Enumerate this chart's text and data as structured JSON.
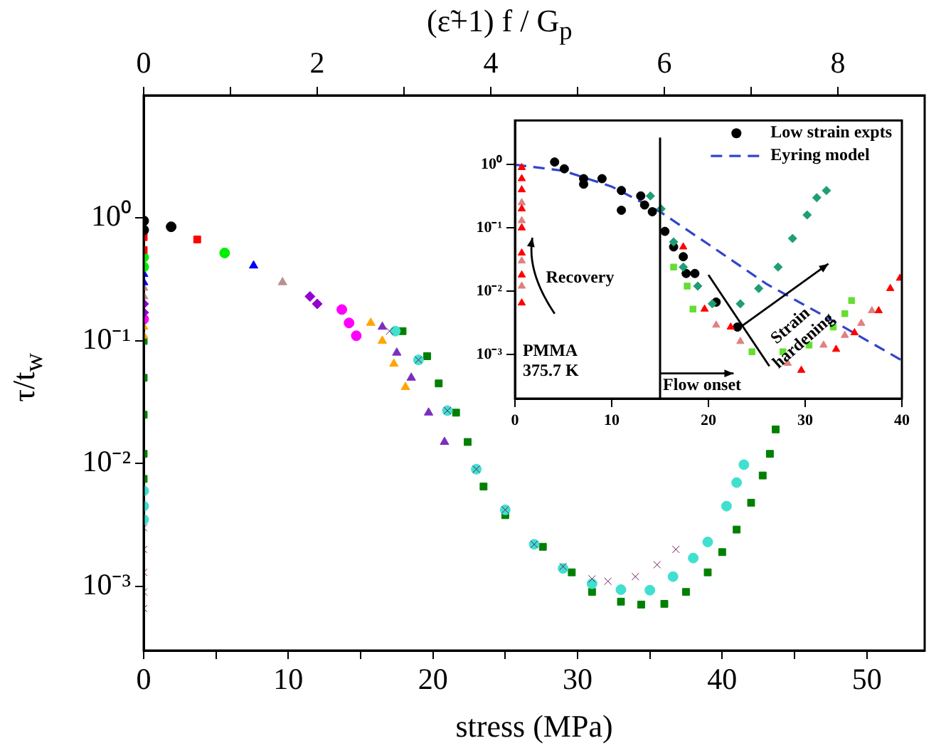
{
  "chart_data": [
    {
      "type": "scatter",
      "x2label": "(ε̃+1) f / G$_{p}$",
      "xlabel": "stress (MPa)",
      "ylabel": "τ/t$_{w}$",
      "log": "y",
      "grid": false,
      "xlim": [
        0,
        54
      ],
      "xticks": [
        0,
        {
          "value": 5,
          "label": null
        },
        10,
        {
          "value": 15,
          "label": null
        },
        20,
        {
          "value": 25,
          "label": null
        },
        30,
        {
          "value": 35,
          "label": null
        },
        40,
        {
          "value": 45,
          "label": null
        },
        50
      ],
      "x2lim": [
        0,
        9
      ],
      "x2ticks": [
        0,
        {
          "value": 1,
          "label": null
        },
        2,
        {
          "value": 3,
          "label": null
        },
        4,
        {
          "value": 5,
          "label": null
        },
        6,
        {
          "value": 7,
          "label": null
        },
        8
      ],
      "ylim": [
        0.0003,
        10
      ],
      "yticks": [
        {
          "value": 1,
          "label": "10⁰"
        },
        {
          "value": 0.1,
          "label": "10⁻¹"
        },
        {
          "value": 0.01,
          "label": "10⁻²"
        },
        {
          "value": 0.001,
          "label": "10⁻³"
        }
      ],
      "series": [
        {
          "color": "#000000",
          "marker": "circle",
          "x": [
            0,
            0,
            1.9
          ],
          "values": [
            0.95,
            0.8,
            0.85
          ]
        },
        {
          "color": "#ff0000",
          "marker": "square",
          "x": [
            0,
            0,
            3.7
          ],
          "values": [
            0.7,
            0.55,
            0.67
          ]
        },
        {
          "color": "#00ee00",
          "marker": "circle",
          "x": [
            0,
            0,
            5.6
          ],
          "values": [
            0.48,
            0.4,
            0.52
          ]
        },
        {
          "color": "#0000ff",
          "marker": "triangle",
          "x": [
            0,
            0,
            7.6
          ],
          "values": [
            0.35,
            0.3,
            0.41
          ]
        },
        {
          "color": "#bc8f8f",
          "marker": "triangle",
          "x": [
            0,
            0,
            9.6
          ],
          "values": [
            0.27,
            0.23,
            0.3
          ]
        },
        {
          "color": "#9400d3",
          "marker": "diamond",
          "x": [
            0,
            0,
            11.5,
            12
          ],
          "values": [
            0.2,
            0.17,
            0.23,
            0.2
          ]
        },
        {
          "color": "#ff00ff",
          "marker": "circle",
          "x": [
            0,
            13.7,
            14.2,
            14.7
          ],
          "values": [
            0.15,
            0.18,
            0.14,
            0.11
          ]
        },
        {
          "color": "#ffa500",
          "marker": "triangle",
          "x": [
            0,
            0,
            15.7,
            16.5,
            17.3,
            18.1
          ],
          "values": [
            0.13,
            0.11,
            0.14,
            0.1,
            0.065,
            0.042
          ]
        },
        {
          "color": "#7b2fbe",
          "marker": "triangle",
          "x": [
            16.5,
            17.5,
            18.5,
            19.7,
            20.8
          ],
          "values": [
            0.13,
            0.08,
            0.05,
            0.026,
            0.015
          ]
        },
        {
          "color": "#6b1a5a",
          "marker": "cross",
          "x": [
            0,
            0,
            0,
            0,
            0,
            17,
            19,
            21,
            23,
            25,
            27,
            29,
            31,
            32.1,
            34,
            35.5,
            36.8
          ],
          "values": [
            0.003,
            0.002,
            0.0013,
            0.0009,
            0.00066,
            0.12,
            0.07,
            0.027,
            0.009,
            0.0042,
            0.0022,
            0.00145,
            0.00115,
            0.0011,
            0.0012,
            0.0015,
            0.002
          ]
        },
        {
          "color": "#40e0d0",
          "marker": "circle",
          "x": [
            0,
            0,
            0,
            17.4,
            19,
            21,
            23,
            25,
            27,
            29,
            31,
            33,
            35,
            36.6,
            38,
            39,
            40.3,
            41,
            41.5
          ],
          "values": [
            0.006,
            0.0045,
            0.0035,
            0.12,
            0.07,
            0.027,
            0.009,
            0.0042,
            0.0022,
            0.0014,
            0.00105,
            0.00094,
            0.00093,
            0.0012,
            0.0017,
            0.0023,
            0.0045,
            0.007,
            0.0098
          ]
        },
        {
          "color": "#008000",
          "marker": "square",
          "x": [
            0,
            0,
            0,
            0,
            0,
            17.9,
            19.6,
            20.4,
            21.6,
            22.4,
            23.5,
            25,
            27.6,
            29.6,
            31,
            33,
            34.4,
            36,
            37.5,
            39,
            40,
            41,
            42,
            42.8,
            43.3,
            43.7
          ],
          "values": [
            0.1,
            0.05,
            0.025,
            0.012,
            0.0075,
            0.12,
            0.075,
            0.045,
            0.026,
            0.015,
            0.0065,
            0.0038,
            0.0021,
            0.0013,
            0.0009,
            0.00075,
            0.00071,
            0.00072,
            0.0009,
            0.0013,
            0.0019,
            0.0029,
            0.0048,
            0.008,
            0.012,
            0.019
          ]
        }
      ]
    },
    {
      "type": "scatter",
      "log": "y",
      "grid": false,
      "legend": "top right",
      "xlim": [
        0,
        40
      ],
      "xticks": [
        0,
        10,
        20,
        30,
        40
      ],
      "ylim": [
        0.0002,
        5
      ],
      "yticks": [
        {
          "value": 1,
          "label": "10⁰"
        },
        {
          "value": 0.1,
          "label": "10⁻¹"
        },
        {
          "value": 0.01,
          "label": "10⁻²"
        },
        {
          "value": 0.001,
          "label": "10⁻³"
        }
      ],
      "ref_lines": [
        {
          "axis": "x",
          "value": 15,
          "color": "#000000"
        }
      ],
      "annotations": [
        "Recovery",
        "Strain\nhardening",
        "Flow onset",
        "PMMA\n375.7 K"
      ],
      "series": [
        {
          "color": "#ff0000",
          "marker": "triangle",
          "x": [
            0.7,
            0.7,
            0.7,
            0.7,
            0.7,
            0.7,
            0.7,
            0.7,
            17.4,
            19.6,
            22.3,
            29.6,
            33.2,
            35.1,
            37.6,
            38.8,
            39.8
          ],
          "values": [
            0.9,
            0.6,
            0.4,
            0.2,
            0.1,
            0.04,
            0.018,
            0.0065,
            0.05,
            0.0052,
            0.0027,
            0.00056,
            0.0012,
            0.0022,
            0.0049,
            0.011,
            0.016
          ]
        },
        {
          "color": "#e08080",
          "marker": "triangle",
          "x": [
            0.7,
            0.7,
            0.7,
            0.7,
            20.8,
            23.3,
            28.2,
            31.9,
            34.1,
            35.8,
            36.9
          ],
          "values": [
            0.25,
            0.13,
            0.03,
            0.012,
            0.0029,
            0.0016,
            0.00072,
            0.0014,
            0.002,
            0.0031,
            0.0049
          ]
        },
        {
          "color": "#66dd33",
          "marker": "square",
          "x": [
            16.4,
            17.8,
            18.4,
            24.5,
            27.7,
            30.4,
            32.9,
            34.1,
            34.8
          ],
          "values": [
            0.024,
            0.012,
            0.0052,
            0.0011,
            0.0011,
            0.0014,
            0.0027,
            0.0044,
            0.0071
          ]
        },
        {
          "color": "#1f9e74",
          "marker": "diamond",
          "x": [
            14,
            15.1,
            16.4,
            17.4,
            18.9,
            20.4,
            23.3,
            25.2,
            27.2,
            28.7,
            30.2,
            31.2,
            32.2
          ],
          "values": [
            0.32,
            0.2,
            0.06,
            0.024,
            0.012,
            0.0063,
            0.0063,
            0.011,
            0.024,
            0.068,
            0.16,
            0.3,
            0.39
          ]
        },
        {
          "name": "Low strain expts",
          "color": "#000000",
          "marker": "circle",
          "x": [
            4.1,
            5.1,
            7.1,
            7.1,
            9,
            11,
            11,
            13,
            13.4,
            14.2,
            15.5,
            16.4,
            17.4,
            17.7,
            18.6,
            20.8,
            23
          ],
          "values": [
            1.1,
            0.86,
            0.6,
            0.49,
            0.6,
            0.39,
            0.19,
            0.32,
            0.23,
            0.18,
            0.088,
            0.05,
            0.035,
            0.019,
            0.019,
            0.0067,
            0.0027
          ]
        },
        {
          "name": "Eyring model",
          "type": "line",
          "color": "#3344cc",
          "marker": "none",
          "line_style": "dashed",
          "x": [
            0,
            5,
            10,
            15,
            20,
            26,
            33,
            40
          ],
          "values": [
            1,
            0.8,
            0.45,
            0.18,
            0.055,
            0.013,
            0.0033,
            0.0008
          ]
        }
      ]
    }
  ]
}
